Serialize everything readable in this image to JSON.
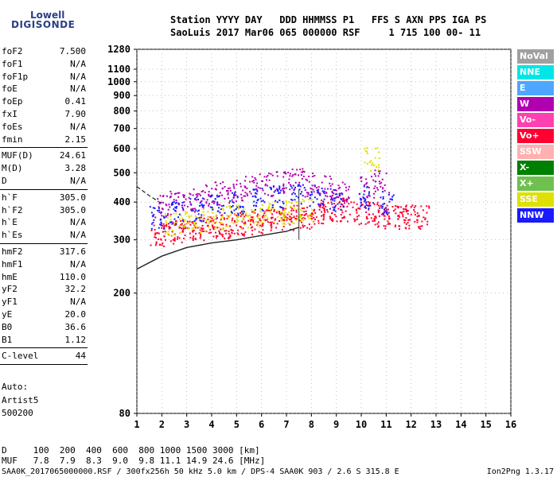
{
  "logo": {
    "line1": "Lowell",
    "line2": "DIGISONDE"
  },
  "header": {
    "line1": "Station YYYY DAY   DDD HHMMSS P1   FFS S AXN PPS IGA PS",
    "line2": "SaoLuis 2017 Mar06 065 000000 RSF     1 715 100 00- 11"
  },
  "params": {
    "group1": [
      {
        "name": "foF2",
        "value": "7.500"
      },
      {
        "name": "foF1",
        "value": "N/A"
      },
      {
        "name": "foF1p",
        "value": "N/A"
      },
      {
        "name": "foE",
        "value": "N/A"
      },
      {
        "name": "foEp",
        "value": "0.41"
      },
      {
        "name": "fxI",
        "value": "7.90"
      },
      {
        "name": "foEs",
        "value": "N/A"
      },
      {
        "name": "fmin",
        "value": "2.15"
      }
    ],
    "group2": [
      {
        "name": "MUF(D)",
        "value": "24.61"
      },
      {
        "name": "M(D)",
        "value": "3.28"
      },
      {
        "name": "D",
        "value": "N/A"
      }
    ],
    "group3": [
      {
        "name": "h`F",
        "value": "305.0"
      },
      {
        "name": "h`F2",
        "value": "305.0"
      },
      {
        "name": "h`E",
        "value": "N/A"
      },
      {
        "name": "h`Es",
        "value": "N/A"
      }
    ],
    "group4": [
      {
        "name": "hmF2",
        "value": "317.6"
      },
      {
        "name": "hmF1",
        "value": "N/A"
      },
      {
        "name": "hmE",
        "value": "110.0"
      },
      {
        "name": "yF2",
        "value": "32.2"
      },
      {
        "name": "yF1",
        "value": "N/A"
      },
      {
        "name": "yE",
        "value": "20.0"
      },
      {
        "name": "B0",
        "value": "36.6"
      },
      {
        "name": "B1",
        "value": "1.12"
      }
    ],
    "group5": [
      {
        "name": "C-level",
        "value": "44"
      }
    ]
  },
  "autoscaling": {
    "line1": "Auto:",
    "line2": "Artist5",
    "line3": "500200"
  },
  "legend": [
    {
      "label": "NoVal",
      "color": "#a0a0a0"
    },
    {
      "label": "NNE",
      "color": "#00e6e6"
    },
    {
      "label": "E",
      "color": "#4da6ff"
    },
    {
      "label": "W",
      "color": "#b000b0"
    },
    {
      "label": "Vo-",
      "color": "#ff40b0"
    },
    {
      "label": "Vo+",
      "color": "#ff0030"
    },
    {
      "label": "SSW",
      "color": "#ffb0b0"
    },
    {
      "label": "X-",
      "color": "#008000"
    },
    {
      "label": "X+",
      "color": "#70c050"
    },
    {
      "label": "SSE",
      "color": "#e0e000"
    },
    {
      "label": "NNW",
      "color": "#1a1aff"
    }
  ],
  "muf_table": {
    "d_label": "D",
    "d_values": [
      "100",
      "200",
      "400",
      "600",
      "800",
      "1000",
      "1500",
      "3000"
    ],
    "d_unit": "[km]",
    "muf_label": "MUF",
    "muf_values": [
      "7.8",
      "7.9",
      "8.3",
      "9.0",
      "9.8",
      "11.1",
      "14.9",
      "24.6"
    ],
    "muf_unit": "[MHz]"
  },
  "footer": {
    "left": "SAA0K_2017065000000.RSF / 300fx256h 50 kHz 5.0 km / DPS-4 SAA0K 903 / 2.6 S 315.8 E",
    "right": "Ion2Png 1.3.17"
  },
  "chart_data": {
    "type": "scatter",
    "title": "",
    "xlabel": "",
    "ylabel": "",
    "xlim": [
      1,
      16
    ],
    "ylim": [
      80,
      1280
    ],
    "x_ticks": [
      1,
      2,
      3,
      4,
      5,
      6,
      7,
      8,
      9,
      10,
      11,
      12,
      13,
      14,
      15,
      16
    ],
    "y_ticks": [
      80,
      200,
      300,
      400,
      500,
      600,
      700,
      800,
      900,
      1000,
      1100,
      1280
    ],
    "y_scale": "log",
    "grid": "dotted",
    "legend_position": "right",
    "series": [
      {
        "name": "Vo+",
        "color": "#ff0030",
        "x": [
          1.8,
          2.2,
          2.6,
          3.0,
          3.4,
          3.8,
          4.2,
          4.6,
          5.0,
          5.4,
          5.8,
          6.2,
          6.6,
          7.0,
          7.4,
          7.8,
          8.2,
          8.6,
          9.0,
          9.4,
          10.0,
          10.4,
          10.8,
          11.2,
          11.6,
          12.0,
          12.4
        ],
        "y": [
          310,
          315,
          320,
          325,
          330,
          330,
          335,
          335,
          340,
          345,
          345,
          350,
          355,
          355,
          360,
          360,
          370,
          375,
          380,
          380,
          370,
          370,
          365,
          360,
          360,
          360,
          360
        ]
      },
      {
        "name": "W",
        "color": "#b000b0",
        "x": [
          2.0,
          2.6,
          3.2,
          3.8,
          4.4,
          5.0,
          5.6,
          6.2,
          6.8,
          7.4,
          8.0,
          8.6,
          9.2,
          10.2,
          10.8
        ],
        "y": [
          390,
          400,
          410,
          420,
          430,
          440,
          450,
          460,
          470,
          480,
          460,
          450,
          430,
          450,
          470
        ]
      },
      {
        "name": "SSE",
        "color": "#e0e000",
        "x": [
          2.4,
          3.0,
          3.6,
          4.2,
          4.8,
          5.4,
          6.0,
          6.6,
          7.2,
          7.8,
          10.4
        ],
        "y": [
          340,
          345,
          350,
          355,
          360,
          360,
          365,
          370,
          375,
          380,
          560
        ]
      },
      {
        "name": "NNW",
        "color": "#1a1aff",
        "x": [
          1.8,
          2.6,
          3.4,
          4.2,
          5.0,
          5.8,
          6.6,
          7.4,
          8.2,
          9.0,
          10.2,
          11.0
        ],
        "y": [
          360,
          370,
          380,
          390,
          400,
          410,
          420,
          430,
          420,
          410,
          420,
          400
        ]
      }
    ],
    "model_profile": {
      "x": [
        1.0,
        2.0,
        3.0,
        4.0,
        5.0,
        6.0,
        7.0,
        7.5
      ],
      "y": [
        240,
        265,
        283,
        293,
        300,
        310,
        320,
        330
      ]
    },
    "dashed_trace": {
      "x": [
        1.0,
        1.5,
        2.0
      ],
      "y": [
        450,
        420,
        395
      ]
    }
  }
}
